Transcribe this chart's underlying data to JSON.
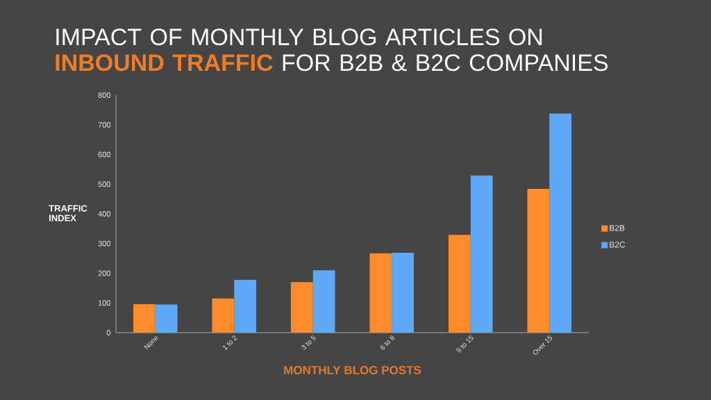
{
  "chart_data": {
    "type": "bar",
    "title": "IMPACT OF MONTHLY BLOG ARTICLES ON **INBOUND TRAFFIC** FOR B2B & B2C COMPANIES",
    "xlabel": "MONTHLY BLOG POSTS",
    "ylabel": "TRAFFIC INDEX",
    "categories": [
      "None",
      "1 to 2",
      "3 to 5",
      "6 to 8",
      "9 to 15",
      "Over 15"
    ],
    "series": [
      {
        "name": "B2B",
        "color": "#ff8c2a",
        "values": [
          96,
          115,
          170,
          267,
          329,
          484
        ]
      },
      {
        "name": "B2C",
        "color": "#5ea8f7",
        "values": [
          95,
          178,
          210,
          269,
          529,
          738
        ]
      }
    ],
    "ylim": [
      0,
      800
    ],
    "yticks": [
      0,
      100,
      200,
      300,
      400,
      500,
      600,
      700,
      800
    ],
    "legend": "right"
  }
}
